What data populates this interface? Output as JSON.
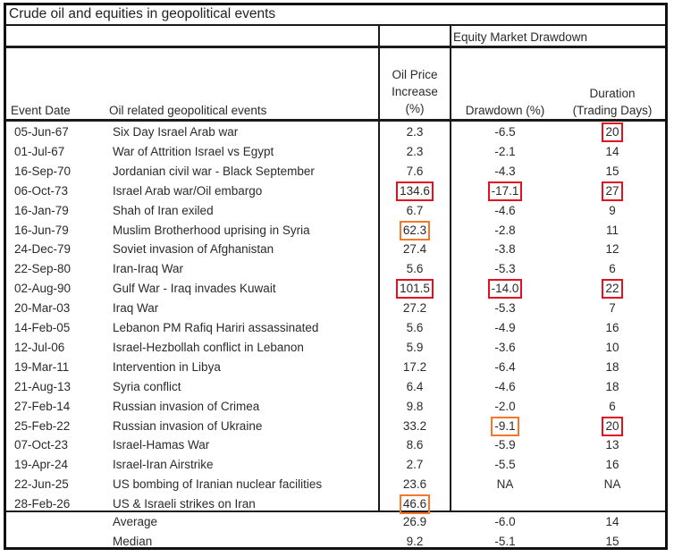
{
  "title": "Crude oil and equities in geopolitical events",
  "header": {
    "group_label": "Equity Market Drawdown",
    "col_date": "Event Date",
    "col_event": "Oil related geopolitical events",
    "col_oil": [
      "Oil Price",
      "Increase",
      "(%)"
    ],
    "col_drawdown": "Drawdown (%)",
    "col_duration": [
      "Duration",
      "(Trading Days)"
    ]
  },
  "highlight_colors": {
    "red": "#e3101f",
    "orange": "#f5782a"
  },
  "rows": [
    {
      "date": "05-Jun-67",
      "event": "Six Day Israel Arab war",
      "oil": "2.3",
      "drawdown": "-6.5",
      "duration": "20",
      "hl": {
        "duration": "red"
      }
    },
    {
      "date": "01-Jul-67",
      "event": "War of Attrition Israel vs Egypt",
      "oil": "2.3",
      "drawdown": "-2.1",
      "duration": "14",
      "hl": {}
    },
    {
      "date": "16-Sep-70",
      "event": "Jordanian civil war - Black September",
      "oil": "7.6",
      "drawdown": "-4.3",
      "duration": "15",
      "hl": {}
    },
    {
      "date": "06-Oct-73",
      "event": "Israel Arab war/Oil embargo",
      "oil": "134.6",
      "drawdown": "-17.1",
      "duration": "27",
      "hl": {
        "oil": "red",
        "drawdown": "red",
        "duration": "red"
      }
    },
    {
      "date": "16-Jan-79",
      "event": "Shah of Iran exiled",
      "oil": "6.7",
      "drawdown": "-4.6",
      "duration": "9",
      "hl": {}
    },
    {
      "date": "16-Jun-79",
      "event": "Muslim Brotherhood uprising in Syria",
      "oil": "62.3",
      "drawdown": "-2.8",
      "duration": "11",
      "hl": {
        "oil": "orange"
      }
    },
    {
      "date": "24-Dec-79",
      "event": "Soviet invasion of Afghanistan",
      "oil": "27.4",
      "drawdown": "-3.8",
      "duration": "12",
      "hl": {}
    },
    {
      "date": "22-Sep-80",
      "event": "Iran-Iraq War",
      "oil": "5.6",
      "drawdown": "-5.3",
      "duration": "6",
      "hl": {}
    },
    {
      "date": "02-Aug-90",
      "event": "Gulf War - Iraq invades Kuwait",
      "oil": "101.5",
      "drawdown": "-14.0",
      "duration": "22",
      "hl": {
        "oil": "red",
        "drawdown": "red",
        "duration": "red"
      }
    },
    {
      "date": "20-Mar-03",
      "event": "Iraq War",
      "oil": "27.2",
      "drawdown": "-5.3",
      "duration": "7",
      "hl": {}
    },
    {
      "date": "14-Feb-05",
      "event": "Lebanon PM Rafiq Hariri assassinated",
      "oil": "5.6",
      "drawdown": "-4.9",
      "duration": "16",
      "hl": {}
    },
    {
      "date": "12-Jul-06",
      "event": "Israel-Hezbollah conflict in Lebanon",
      "oil": "5.9",
      "drawdown": "-3.6",
      "duration": "10",
      "hl": {}
    },
    {
      "date": "19-Mar-11",
      "event": "Intervention in Libya",
      "oil": "17.2",
      "drawdown": "-6.4",
      "duration": "18",
      "hl": {}
    },
    {
      "date": "21-Aug-13",
      "event": "Syria conflict",
      "oil": "6.4",
      "drawdown": "-4.6",
      "duration": "18",
      "hl": {}
    },
    {
      "date": "27-Feb-14",
      "event": "Russian invasion of Crimea",
      "oil": "9.8",
      "drawdown": "-2.0",
      "duration": "6",
      "hl": {}
    },
    {
      "date": "25-Feb-22",
      "event": "Russian invasion of Ukraine",
      "oil": "33.2",
      "drawdown": "-9.1",
      "duration": "20",
      "hl": {
        "drawdown": "orange",
        "duration": "red"
      }
    },
    {
      "date": "07-Oct-23",
      "event": "Israel-Hamas War",
      "oil": "8.6",
      "drawdown": "-5.9",
      "duration": "13",
      "hl": {}
    },
    {
      "date": "19-Apr-24",
      "event": "Israel-Iran Airstrike",
      "oil": "2.7",
      "drawdown": "-5.5",
      "duration": "16",
      "hl": {}
    },
    {
      "date": "22-Jun-25",
      "event": "US bombing of Iranian nuclear facilities",
      "oil": "23.6",
      "drawdown": "NA",
      "duration": "NA",
      "hl": {}
    },
    {
      "date": "28-Feb-26",
      "event": "US & Israeli strikes on Iran",
      "oil": "46.6",
      "drawdown": "",
      "duration": "",
      "hl": {
        "oil": "orange"
      }
    }
  ],
  "summary": [
    {
      "label": "Average",
      "oil": "26.9",
      "drawdown": "-6.0",
      "duration": "14"
    },
    {
      "label": "Median",
      "oil": "9.2",
      "drawdown": "-5.1",
      "duration": "15"
    }
  ]
}
